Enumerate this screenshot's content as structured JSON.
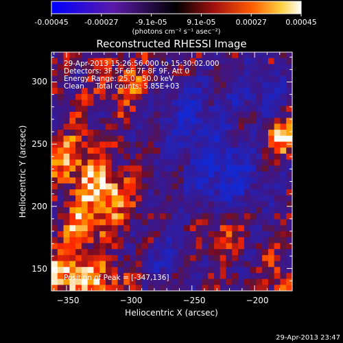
{
  "colorbar": {
    "tick_labels": [
      "-0.00045",
      "-0.00027",
      "-9.1e-05",
      "9.1e-05",
      "0.00027",
      "0.00045"
    ],
    "units_label": "(photons cm⁻² s⁻¹ asec⁻²)",
    "range": [
      -0.00045,
      0.00045
    ]
  },
  "plot": {
    "title": "Reconstructed RHESSI Image",
    "info_lines": [
      "29-Apr-2013 15:26:56.000 to 15:30:02.000",
      "Detectors: 3F 5F 6F 7F 8F 9F, Att 0",
      "Energy Range: 25.0 - 50.0 keV",
      "Clean     Total counts: 5.85E+03"
    ],
    "peak_label": "Position of Peak = [-347,136]",
    "xlabel": "Heliocentric X (arcsec)",
    "ylabel": "Heliocentric Y (arcsec)",
    "xticks": [
      "−350",
      "−300",
      "−250",
      "−200"
    ],
    "yticks": [
      "150",
      "200",
      "250",
      "300"
    ],
    "xlim": [
      -362,
      -170
    ],
    "ylim": [
      132,
      324
    ],
    "timestamp": "29-Apr-2013 23:47",
    "colors": {
      "background": "#000000",
      "negative_low": "#0000ff",
      "mid": "#000000",
      "positive_high": "#ffffff"
    }
  }
}
